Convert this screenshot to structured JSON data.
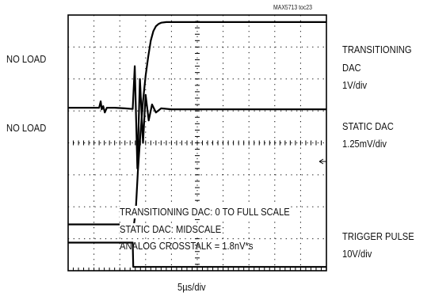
{
  "figure_tag": "MAX5713 toc23",
  "chart_data": {
    "type": "line",
    "xlabel": "5µs/div",
    "left_labels": [
      "NO LOAD",
      "NO LOAD"
    ],
    "channels": [
      {
        "name": "TRANSITIONING DAC",
        "scale": "1V/div",
        "label_lines": [
          "TRANSITIONING",
          "DAC",
          "1V/div"
        ]
      },
      {
        "name": "STATIC DAC",
        "scale": "1.25mV/div",
        "label_lines": [
          "STATIC DAC",
          "1.25mV/div"
        ]
      },
      {
        "name": "TRIGGER PULSE",
        "scale": "10V/div",
        "label_lines": [
          "TRIGGER PULSE",
          "10V/div"
        ]
      }
    ],
    "annotations": [
      "TRANSITIONING DAC: 0 TO FULL SCALE",
      "STATIC DAC: MIDSCALE",
      "ANALOG CROSSTALK = 1.8nV*s"
    ],
    "xlim": [
      0,
      10
    ],
    "ylim": [
      0,
      8
    ],
    "grid": true,
    "traces": [
      {
        "name": "TRANSITIONING DAC",
        "x": [
          0,
          2.55,
          2.62,
          2.7,
          2.8,
          2.9,
          3.0,
          3.1,
          3.2,
          3.3,
          3.4,
          3.5,
          3.6,
          3.8,
          4.0,
          10
        ],
        "y": [
          1.45,
          1.45,
          1.9,
          3.1,
          4.3,
          5.3,
          6.1,
          6.7,
          7.2,
          7.5,
          7.65,
          7.72,
          7.76,
          7.78,
          7.78,
          7.78
        ]
      },
      {
        "name": "STATIC DAC",
        "x": [
          0,
          1.2,
          1.26,
          1.3,
          1.36,
          1.42,
          1.5,
          1.8,
          2.2,
          2.5,
          2.58,
          2.68,
          2.78,
          2.9,
          3.0,
          3.12,
          3.25,
          3.4,
          3.6,
          4.0,
          10
        ],
        "y": [
          5.1,
          5.1,
          5.3,
          5.05,
          5.15,
          4.95,
          5.1,
          5.1,
          5.08,
          5.06,
          6.4,
          3.2,
          6.0,
          4.0,
          5.5,
          4.7,
          5.2,
          4.95,
          5.08,
          5.05,
          5.05
        ]
      },
      {
        "name": "TRIGGER PULSE",
        "x": [
          0,
          2.5,
          2.52,
          10
        ],
        "y": [
          0.88,
          0.88,
          0.12,
          0.12
        ]
      }
    ]
  }
}
